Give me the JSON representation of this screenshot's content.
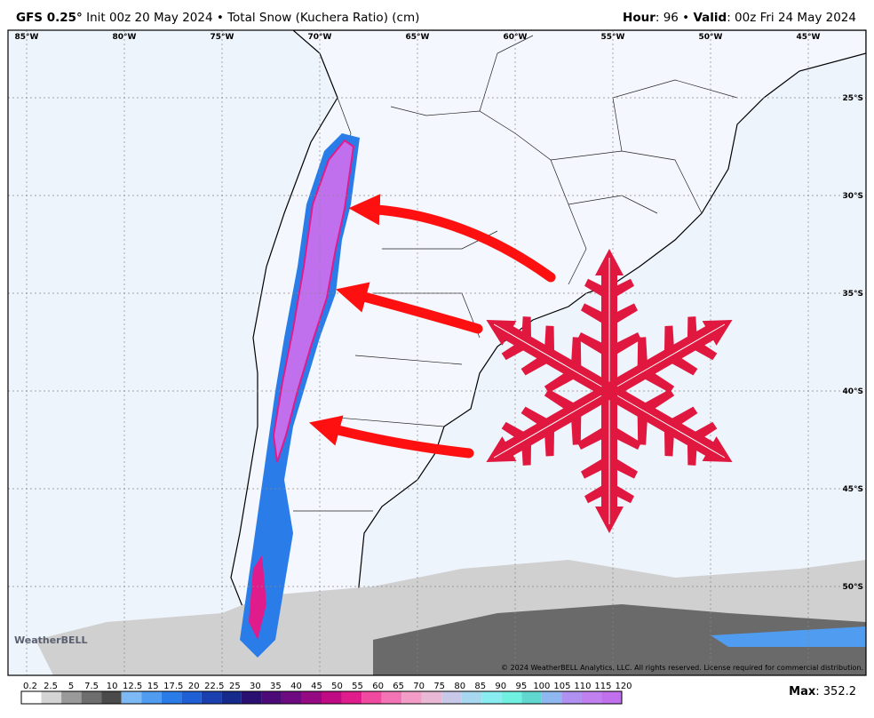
{
  "header": {
    "model": "GFS 0.25°",
    "description": "Init 00z 20 May 2024 • Total Snow (Kuchera Ratio) (cm)",
    "hour_label": "Hour",
    "hour": ": 96 •",
    "valid_label": "Valid",
    "valid": ": 00z Fri 24 May 2024"
  },
  "map": {
    "lon_labels": [
      "85°W",
      "80°W",
      "75°W",
      "70°W",
      "65°W",
      "60°W",
      "55°W",
      "50°W",
      "45°W"
    ],
    "lat_labels": [
      "25°S",
      "30°S",
      "35°S",
      "40°S",
      "45°S",
      "50°S"
    ],
    "logo": "WeatherBELL",
    "copyright": "© 2024 WeatherBELL Analytics, LLC. All rights reserved. License required for commercial distribution."
  },
  "legend": {
    "ticks": [
      0.2,
      2.5,
      5,
      7.5,
      10,
      12.5,
      15,
      17.5,
      20,
      22.5,
      25,
      30,
      35,
      40,
      45,
      50,
      55,
      60,
      65,
      70,
      75,
      80,
      85,
      90,
      95,
      100,
      105,
      110,
      115,
      120
    ],
    "colors": [
      "#ffffff",
      "#d4d4d4",
      "#9a9a9a",
      "#6e6e6e",
      "#4a4a4a",
      "#7db9f5",
      "#4f9cf0",
      "#2a7de8",
      "#1f5fd6",
      "#1a40b0",
      "#152a8a",
      "#2a1070",
      "#4b0a78",
      "#6e0a80",
      "#950a82",
      "#c00a84",
      "#e01c8c",
      "#f04aa0",
      "#f274b4",
      "#f39cc8",
      "#e8b8d4",
      "#c8c8e8",
      "#a8d8f0",
      "#88ecf0",
      "#70f0e0",
      "#60d8d0",
      "#90b8f0",
      "#b090f0",
      "#c080f0",
      "#c070ec"
    ],
    "max_label": "Max",
    "max": ": 352.2"
  }
}
